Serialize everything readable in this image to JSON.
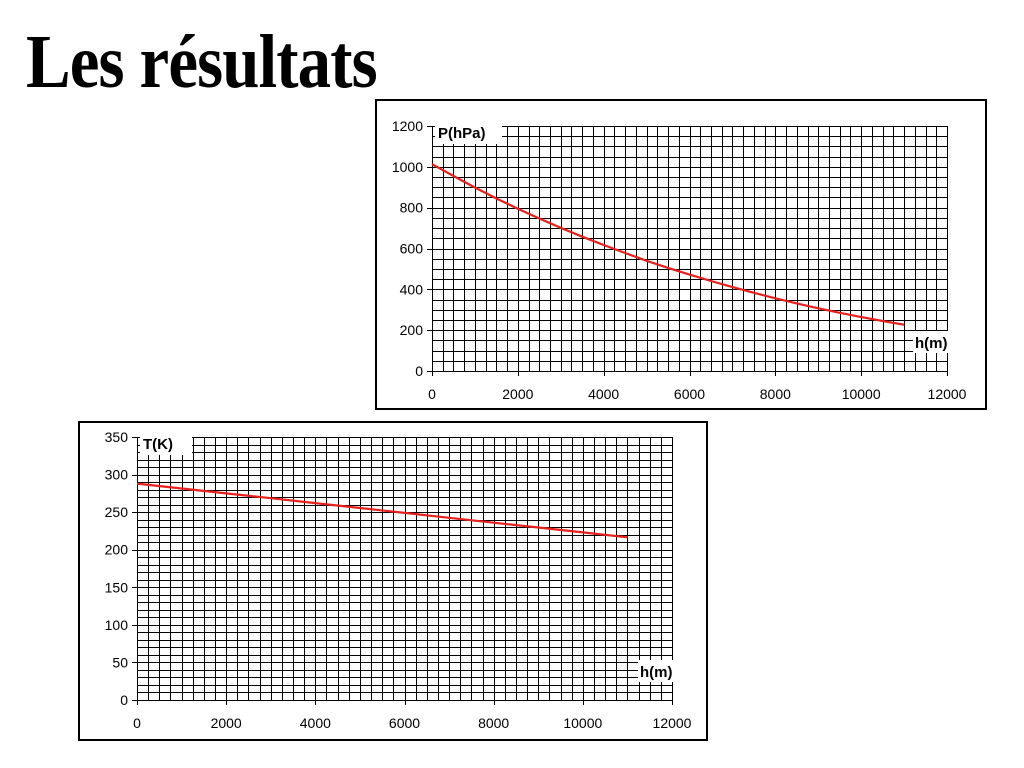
{
  "page": {
    "title": "Les résultats"
  },
  "chart_data": [
    {
      "id": "pressure",
      "type": "line",
      "title": "",
      "xlabel": "h(m)",
      "ylabel": "P(hPa)",
      "xlim": [
        0,
        12000
      ],
      "ylim": [
        0,
        1200
      ],
      "xticks": [
        0,
        2000,
        4000,
        6000,
        8000,
        10000,
        12000
      ],
      "yticks": [
        0,
        200,
        400,
        600,
        800,
        1000,
        1200
      ],
      "grid": true,
      "line_color": "#e8201c",
      "series": [
        {
          "x": [
            0,
            500,
            1000,
            1500,
            2000,
            2500,
            3000,
            3500,
            4000,
            4500,
            5000,
            5500,
            6000,
            6500,
            7000,
            7500,
            8000,
            8500,
            9000,
            9500,
            10000,
            10500,
            11000
          ],
          "y": [
            1013,
            955,
            899,
            845,
            795,
            747,
            701,
            658,
            617,
            578,
            540,
            505,
            472,
            441,
            411,
            383,
            356,
            331,
            307,
            285,
            264,
            245,
            227
          ]
        }
      ]
    },
    {
      "id": "temperature",
      "type": "line",
      "title": "",
      "xlabel": "h(m)",
      "ylabel": "T(K)",
      "xlim": [
        0,
        12000
      ],
      "ylim": [
        0,
        350
      ],
      "xticks": [
        0,
        2000,
        4000,
        6000,
        8000,
        10000,
        12000
      ],
      "yticks": [
        0,
        50,
        100,
        150,
        200,
        250,
        300,
        350
      ],
      "grid": true,
      "line_color": "#e8201c",
      "series": [
        {
          "x": [
            0,
            1000,
            2000,
            3000,
            4000,
            5000,
            6000,
            7000,
            8000,
            9000,
            10000,
            11000
          ],
          "y": [
            288,
            281.5,
            275,
            268.5,
            262,
            255.5,
            249,
            242.5,
            236,
            229.5,
            223,
            216.5
          ]
        }
      ]
    }
  ]
}
